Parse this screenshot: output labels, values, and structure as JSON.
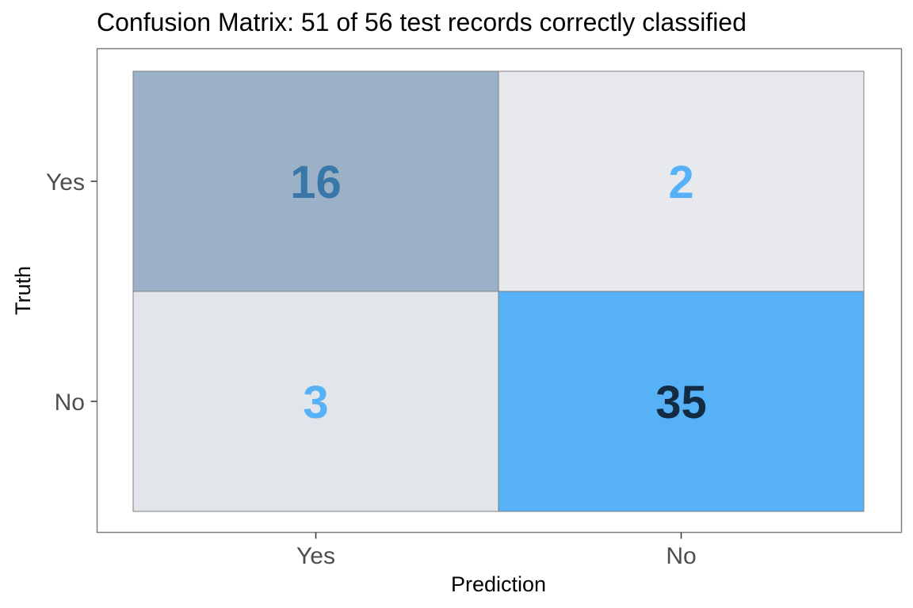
{
  "chart_data": {
    "type": "heatmap",
    "title": "Confusion Matrix: 51 of 56 test records correctly classified",
    "xlabel": "Prediction",
    "ylabel": "Truth",
    "x_categories": [
      "Yes",
      "No"
    ],
    "y_categories": [
      "Yes",
      "No"
    ],
    "cells": [
      {
        "truth": "Yes",
        "prediction": "Yes",
        "value": 16,
        "fill": "#9bb1c7",
        "text_color": "#3a77a9"
      },
      {
        "truth": "Yes",
        "prediction": "No",
        "value": 2,
        "fill": "#e8e9ed",
        "text_color": "#56b1f7"
      },
      {
        "truth": "No",
        "prediction": "Yes",
        "value": 3,
        "fill": "#e2e5e9",
        "text_color": "#56b1f7"
      },
      {
        "truth": "No",
        "prediction": "No",
        "value": 35,
        "fill": "#56b1f7",
        "text_color": "#132b43"
      }
    ],
    "grid": false,
    "legend": "none"
  }
}
